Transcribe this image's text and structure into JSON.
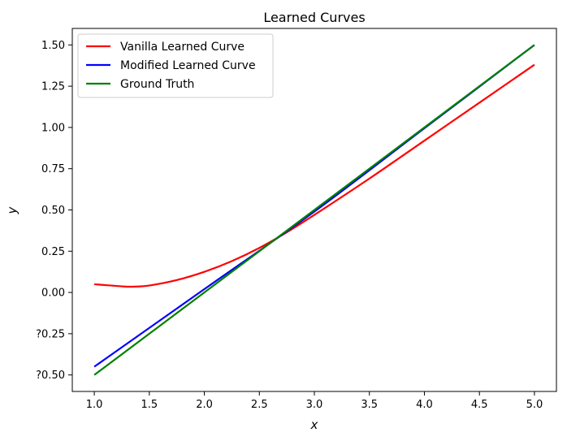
{
  "chart_data": {
    "type": "line",
    "title": "Learned Curves",
    "xlabel": "x",
    "ylabel": "y",
    "xlim": [
      0.8,
      5.2
    ],
    "ylim": [
      -0.6,
      1.6
    ],
    "xticks": [
      1.0,
      1.5,
      2.0,
      2.5,
      3.0,
      3.5,
      4.0,
      4.5,
      5.0
    ],
    "xtick_labels": [
      "1.0",
      "1.5",
      "2.0",
      "2.5",
      "3.0",
      "3.5",
      "4.0",
      "4.5",
      "5.0"
    ],
    "yticks": [
      -0.5,
      -0.25,
      0.0,
      0.25,
      0.5,
      0.75,
      1.0,
      1.25,
      1.5
    ],
    "ytick_labels": [
      "?0.50",
      "?0.25",
      "0.00",
      "0.25",
      "0.50",
      "0.75",
      "1.00",
      "1.25",
      "1.50"
    ],
    "grid": false,
    "legend_position": "top-left",
    "series": [
      {
        "name": "Vanilla Learned Curve",
        "color": "#ff0000",
        "x": [
          1.0,
          1.25,
          1.35,
          1.5,
          1.75,
          2.0,
          2.25,
          2.5,
          2.75,
          3.0,
          3.5,
          4.0,
          4.5,
          5.0
        ],
        "y": [
          0.05,
          0.037,
          0.035,
          0.042,
          0.075,
          0.125,
          0.19,
          0.27,
          0.365,
          0.47,
          0.69,
          0.92,
          1.15,
          1.38
        ]
      },
      {
        "name": "Modified Learned Curve",
        "color": "#0000ff",
        "x": [
          1.0,
          2.0,
          3.0,
          4.0,
          5.0
        ],
        "y": [
          -0.45,
          0.02,
          0.49,
          0.995,
          1.5
        ]
      },
      {
        "name": "Ground Truth",
        "color": "#008000",
        "x": [
          1.0,
          5.0
        ],
        "y": [
          -0.5,
          1.5
        ]
      }
    ]
  }
}
